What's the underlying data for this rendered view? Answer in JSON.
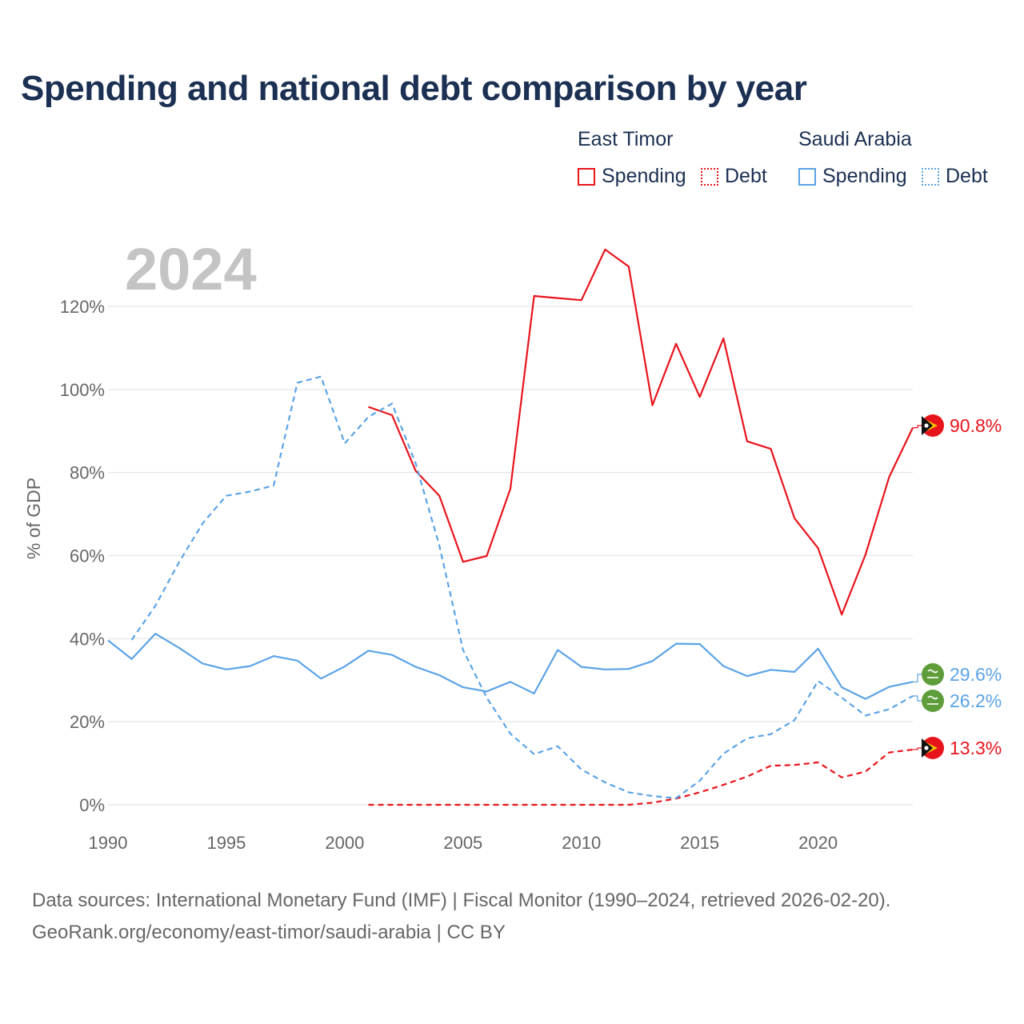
{
  "title": "Spending and national debt comparison by year",
  "legend": {
    "groups": [
      {
        "country": "East Timor",
        "color": "#e8141c",
        "items": [
          "Spending",
          "Debt"
        ]
      },
      {
        "country": "Saudi Arabia",
        "color": "#5ba3e6",
        "items": [
          "Spending",
          "Debt"
        ]
      }
    ]
  },
  "year_label": "2024",
  "footer": {
    "line1": "Data sources: International Monetary Fund (IMF) | Fiscal Monitor (1990–2024, retrieved 2026-02-20).",
    "line2": "GeoRank.org/economy/east-timor/saudi-arabia | CC BY"
  },
  "chart_data": {
    "type": "line",
    "ylabel": "% of GDP",
    "xlim": [
      1990,
      2024
    ],
    "ylim": [
      0,
      130
    ],
    "x_ticks": [
      1990,
      1995,
      2000,
      2005,
      2010,
      2015,
      2020
    ],
    "y_ticks": [
      0,
      20,
      40,
      60,
      80,
      100,
      120
    ],
    "y_tick_labels": [
      "0%",
      "20%",
      "40%",
      "60%",
      "80%",
      "100%",
      "120%"
    ],
    "grid": true,
    "series": [
      {
        "name": "East Timor Spending",
        "country": "East Timor",
        "kind": "Spending",
        "color": "#e8141c",
        "dashed": false,
        "x": [
          2001,
          2002,
          2003,
          2004,
          2005,
          2006,
          2007,
          2008,
          2009,
          2010,
          2011,
          2012,
          2013,
          2014,
          2015,
          2016,
          2017,
          2018,
          2019,
          2020,
          2021,
          2022,
          2023,
          2024
        ],
        "values": [
          95.8,
          93.8,
          80.4,
          74.4,
          58.5,
          59.9,
          76.1,
          122.5,
          122.0,
          121.5,
          133.7,
          129.6,
          96.2,
          111.0,
          98.2,
          112.3,
          87.5,
          85.7,
          69.0,
          61.8,
          45.8,
          60.2,
          78.9,
          90.8
        ],
        "end_label": "90.8%"
      },
      {
        "name": "East Timor Debt",
        "country": "East Timor",
        "kind": "Debt",
        "color": "#e8141c",
        "dashed": true,
        "x": [
          2001,
          2002,
          2003,
          2004,
          2005,
          2006,
          2007,
          2008,
          2009,
          2010,
          2011,
          2012,
          2013,
          2014,
          2015,
          2016,
          2017,
          2018,
          2019,
          2020,
          2021,
          2022,
          2023,
          2024
        ],
        "values": [
          0,
          0,
          0,
          0,
          0,
          0,
          0,
          0,
          0,
          0,
          0,
          0,
          0.5,
          1.5,
          3.0,
          4.8,
          6.8,
          9.4,
          9.6,
          10.2,
          6.6,
          8.0,
          12.6,
          13.3
        ],
        "end_label": "13.3%"
      },
      {
        "name": "Saudi Arabia Spending",
        "country": "Saudi Arabia",
        "kind": "Spending",
        "color": "#5ba3e6",
        "dashed": false,
        "x": [
          1990,
          1991,
          1992,
          1993,
          1994,
          1995,
          1996,
          1997,
          1998,
          1999,
          2000,
          2001,
          2002,
          2003,
          2004,
          2005,
          2006,
          2007,
          2008,
          2009,
          2010,
          2011,
          2012,
          2013,
          2014,
          2015,
          2016,
          2017,
          2018,
          2019,
          2020,
          2021,
          2022,
          2023,
          2024
        ],
        "values": [
          39.6,
          35.1,
          41.2,
          37.8,
          34.0,
          32.6,
          33.4,
          35.8,
          34.7,
          30.4,
          33.3,
          37.1,
          36.1,
          33.2,
          31.2,
          28.3,
          27.3,
          29.6,
          26.8,
          37.3,
          33.2,
          32.6,
          32.7,
          34.6,
          38.8,
          38.7,
          33.4,
          31.0,
          32.5,
          32.0,
          37.6,
          28.3,
          25.5,
          28.4,
          29.6
        ],
        "end_label": "29.6%"
      },
      {
        "name": "Saudi Arabia Debt",
        "country": "Saudi Arabia",
        "kind": "Debt",
        "color": "#5ba3e6",
        "dashed": true,
        "x": [
          1991,
          1992,
          1993,
          1994,
          1995,
          1996,
          1997,
          1998,
          1999,
          2000,
          2001,
          2002,
          2003,
          2004,
          2005,
          2006,
          2007,
          2008,
          2009,
          2010,
          2011,
          2012,
          2013,
          2014,
          2015,
          2016,
          2017,
          2018,
          2019,
          2020,
          2021,
          2022,
          2023,
          2024
        ],
        "values": [
          39.7,
          47.9,
          58.4,
          67.8,
          74.4,
          75.4,
          76.9,
          101.6,
          103.1,
          87.0,
          93.4,
          96.6,
          82.2,
          62.4,
          37.3,
          25.8,
          17.1,
          12.2,
          14.1,
          8.5,
          5.4,
          3.0,
          2.1,
          1.6,
          5.8,
          12.3,
          16.0,
          17.0,
          20.4,
          29.8,
          25.8,
          21.5,
          23.0,
          26.2
        ],
        "end_label": "26.2%"
      }
    ]
  }
}
